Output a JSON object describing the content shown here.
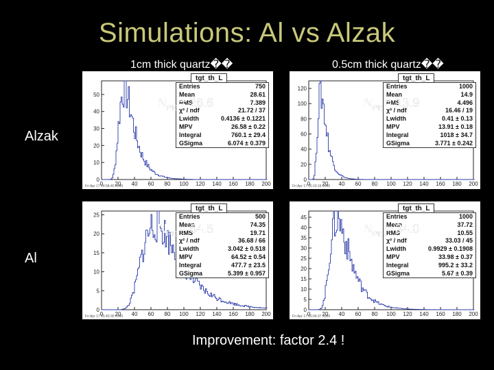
{
  "title": "Simulations: Al vs Alzak",
  "columns": [
    "1cm thick quartz��",
    "0.5cm thick quartz��"
  ],
  "rows": [
    "Alzak",
    "Al"
  ],
  "footer": "Improvement: factor 2.4 !",
  "panels": [
    {
      "plot_title": "tgt_th_L",
      "npe_main": "N",
      "npe_sub": "PE",
      "npe_value": "= 26.6",
      "stats": [
        {
          "k": "Entries",
          "v": "750"
        },
        {
          "k": "Mean",
          "v": "28.61"
        },
        {
          "k": "RMS",
          "v": "7.389"
        },
        {
          "k": "χ² / ndf",
          "v": "21.72 / 37"
        },
        {
          "k": "Lwidth",
          "v": "0.4136 ± 0.1221"
        },
        {
          "k": "MPV",
          "v": "26.58 ± 0.22"
        },
        {
          "k": "Integral",
          "v": "760.1 ± 29.4"
        },
        {
          "k": "GSigma",
          "v": "6.074 ± 0.379"
        }
      ],
      "yticks": [
        "0",
        "10",
        "20",
        "30",
        "40",
        "50"
      ],
      "xticks": [
        "0",
        "20",
        "40",
        "60",
        "80",
        "100",
        "120",
        "140",
        "160",
        "180",
        "200"
      ],
      "stamp": "Fri Apr 17 14:58:40 2009",
      "chart_data": {
        "type": "histogram",
        "ylim": [
          0,
          58
        ],
        "xlim": [
          0,
          200
        ],
        "peak_x": 27,
        "peak_y": 52,
        "width": 6
      }
    },
    {
      "plot_title": "tgt_th_L",
      "npe_main": "N",
      "npe_sub": "PE",
      "npe_value": "= 13.9",
      "stats": [
        {
          "k": "Entries",
          "v": "1000"
        },
        {
          "k": "Mean",
          "v": "14.9"
        },
        {
          "k": "RMS",
          "v": "4.496"
        },
        {
          "k": "χ² / ndf",
          "v": "16.46 / 19"
        },
        {
          "k": "Lwidth",
          "v": "0.41 ± 0.13"
        },
        {
          "k": "MPV",
          "v": "13.91 ± 0.18"
        },
        {
          "k": "Integral",
          "v": "1018 ± 34.7"
        },
        {
          "k": "GSigma",
          "v": "3.771 ± 0.242"
        }
      ],
      "yticks": [
        "0",
        "20",
        "40",
        "60",
        "80",
        "100",
        "120"
      ],
      "xticks": [
        "0",
        "20",
        "40",
        "60",
        "80",
        "100",
        "120",
        "140",
        "160",
        "180",
        "200"
      ],
      "stamp": "Fri Apr 17 15:10:16 2009",
      "chart_data": {
        "type": "histogram",
        "ylim": [
          0,
          130
        ],
        "xlim": [
          0,
          200
        ],
        "peak_x": 14,
        "peak_y": 112,
        "width": 3.5
      }
    },
    {
      "plot_title": "tgt_th_L",
      "npe_main": "N",
      "npe_sub": "PE",
      "npe_value": "= 64.5",
      "stats": [
        {
          "k": "Entries",
          "v": "500"
        },
        {
          "k": "Mean",
          "v": "74.35"
        },
        {
          "k": "RMS",
          "v": "19.71"
        },
        {
          "k": "χ² / ndf",
          "v": "36.68 / 66"
        },
        {
          "k": "Lwidth",
          "v": "3.042 ± 0.518"
        },
        {
          "k": "MPV",
          "v": "64.52 ± 0.54"
        },
        {
          "k": "Integral",
          "v": "477.7 ± 23.5"
        },
        {
          "k": "GSigma",
          "v": "5.399 ± 0.957"
        }
      ],
      "yticks": [
        "0",
        "5",
        "10",
        "15",
        "20",
        "25"
      ],
      "xticks": [
        "0",
        "20",
        "40",
        "60",
        "80",
        "100",
        "120",
        "140",
        "160",
        "180",
        "200"
      ],
      "stamp": "Fri Apr 17 15:43:30 2009",
      "chart_data": {
        "type": "histogram",
        "ylim": [
          0,
          26
        ],
        "xlim": [
          0,
          200
        ],
        "peak_x": 65,
        "peak_y": 22,
        "width": 15
      }
    },
    {
      "plot_title": "tgt_th_L",
      "npe_main": "N",
      "npe_sub": "PE",
      "npe_value": "= 34.0",
      "stats": [
        {
          "k": "Entries",
          "v": "1000"
        },
        {
          "k": "Mean",
          "v": "37.72"
        },
        {
          "k": "RMS",
          "v": "10.55"
        },
        {
          "k": "χ² / ndf",
          "v": "33.03 / 45"
        },
        {
          "k": "Lwidth",
          "v": "0.9929 ± 0.1908"
        },
        {
          "k": "MPV",
          "v": "33.98 ± 0.37"
        },
        {
          "k": "Integral",
          "v": "995.2 ± 33.2"
        },
        {
          "k": "GSigma",
          "v": "5.67 ± 0.39"
        }
      ],
      "yticks": [
        "0",
        "5",
        "10",
        "15",
        "20",
        "25",
        "30",
        "35",
        "40",
        "45"
      ],
      "xticks": [
        "0",
        "20",
        "40",
        "60",
        "80",
        "100",
        "120",
        "140",
        "160",
        "180",
        "200"
      ],
      "stamp": "Fri Apr 17 16:04:37 2009",
      "chart_data": {
        "type": "histogram",
        "ylim": [
          0,
          48
        ],
        "xlim": [
          0,
          200
        ],
        "peak_x": 34,
        "peak_y": 43,
        "width": 8
      }
    }
  ]
}
